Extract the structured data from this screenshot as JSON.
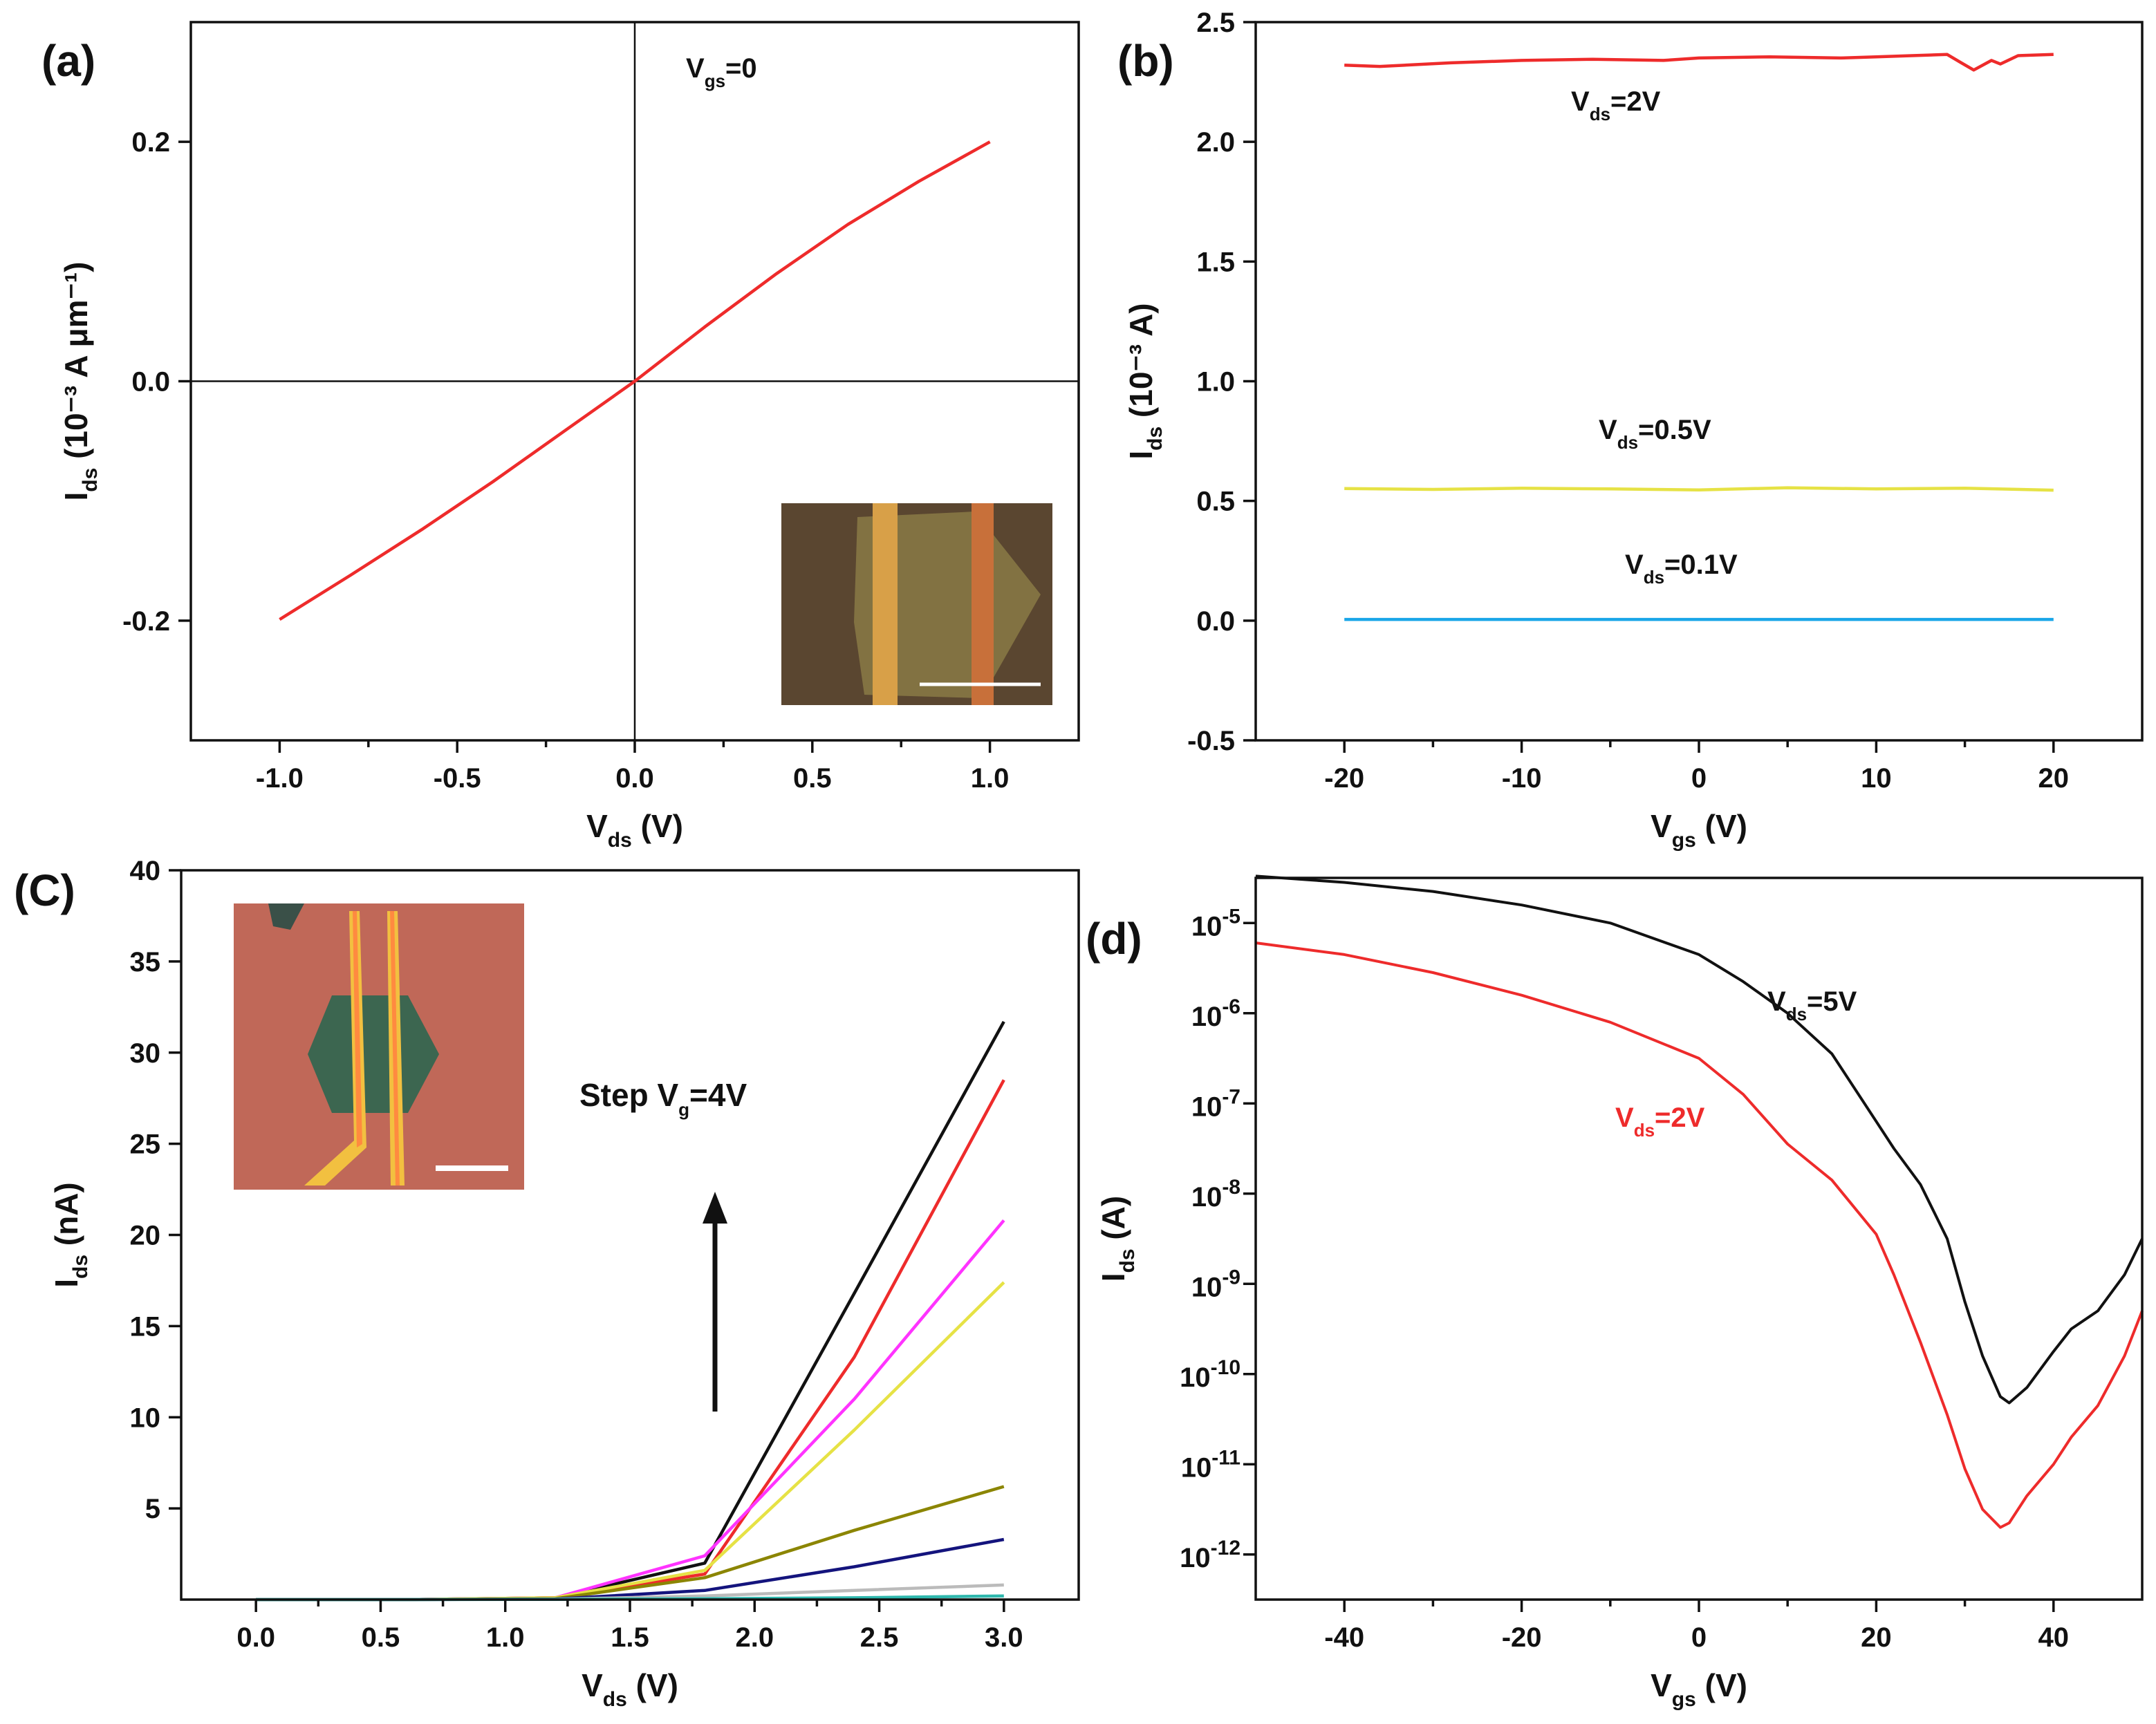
{
  "colors": {
    "red": "#ee2b2b",
    "yellow": "#e6e245",
    "blue": "#1aa6e8",
    "black": "#111111",
    "magenta": "#ff33ff",
    "olive": "#8b8500",
    "navy": "#14147d",
    "gray": "#bbbbbb",
    "teal": "#2fb8ae",
    "inset_a_bg": "#5a4630",
    "inset_c_bg": "#c06858"
  },
  "chart_data": [
    {
      "id": "a",
      "type": "line",
      "panel_label": "(a)",
      "xlabel": {
        "main": "V",
        "sub": "ds",
        "rest": " (V)"
      },
      "ylabel": {
        "main": "I",
        "sub": "ds",
        "rest": " (10⁻³ A μm⁻¹)"
      },
      "xlim": [
        -1.25,
        1.25
      ],
      "ylim": [
        -0.3,
        0.3
      ],
      "xticks": [
        -1.0,
        -0.5,
        0.0,
        0.5,
        1.0
      ],
      "xtick_labels": [
        "-1.0",
        "-0.5",
        "0.0",
        "0.5",
        "1.0"
      ],
      "yticks": [
        -0.2,
        0.0,
        0.2
      ],
      "ytick_labels": [
        "-0.2",
        "0.0",
        "0.2"
      ],
      "crosshair": true,
      "annotation": {
        "main": "V",
        "sub": "gs",
        "rest": "=0"
      },
      "inset": "optical micrograph of device with scale bar",
      "series": [
        {
          "name": "Vgs=0",
          "color": "red",
          "x": [
            -1.0,
            -0.8,
            -0.6,
            -0.4,
            -0.2,
            0.0,
            0.2,
            0.4,
            0.6,
            0.8,
            1.0
          ],
          "y": [
            -0.199,
            -0.162,
            -0.124,
            -0.084,
            -0.042,
            0.0,
            0.046,
            0.09,
            0.131,
            0.167,
            0.2
          ]
        }
      ]
    },
    {
      "id": "b",
      "type": "line",
      "panel_label": "(b)",
      "xlabel": {
        "main": "V",
        "sub": "gs",
        "rest": " (V)"
      },
      "ylabel": {
        "main": "I",
        "sub": "ds",
        "rest": " (10⁻³ A)"
      },
      "xlim": [
        -25,
        25
      ],
      "ylim": [
        -0.5,
        2.5
      ],
      "xticks": [
        -20,
        -10,
        0,
        10,
        20
      ],
      "xtick_labels": [
        "-20",
        "-10",
        "0",
        "10",
        "20"
      ],
      "yticks": [
        -0.5,
        0.0,
        0.5,
        1.0,
        1.5,
        2.0,
        2.5
      ],
      "ytick_labels": [
        "-0.5",
        "0.0",
        "0.5",
        "1.0",
        "1.5",
        "2.0",
        "2.5"
      ],
      "series": [
        {
          "name": "Vds=2V",
          "color": "red",
          "label": {
            "main": "V",
            "sub": "ds",
            "rest": "=2V"
          },
          "x": [
            -20,
            -18,
            -14,
            -10,
            -6,
            -2,
            0,
            4,
            8,
            10,
            12,
            14,
            14.8,
            15.5,
            16.5,
            17,
            18,
            20
          ],
          "y": [
            2.32,
            2.315,
            2.33,
            2.34,
            2.345,
            2.34,
            2.35,
            2.355,
            2.35,
            2.355,
            2.36,
            2.365,
            2.33,
            2.3,
            2.34,
            2.325,
            2.36,
            2.365
          ]
        },
        {
          "name": "Vds=0.5V",
          "color": "yellow",
          "label": {
            "main": "V",
            "sub": "ds",
            "rest": "=0.5V"
          },
          "x": [
            -20,
            -15,
            -10,
            -5,
            0,
            5,
            10,
            15,
            20
          ],
          "y": [
            0.552,
            0.548,
            0.553,
            0.55,
            0.546,
            0.555,
            0.55,
            0.553,
            0.545
          ]
        },
        {
          "name": "Vds=0.1V",
          "color": "blue",
          "label": {
            "main": "V",
            "sub": "ds",
            "rest": "=0.1V"
          },
          "x": [
            -20,
            20
          ],
          "y": [
            0.005,
            0.005
          ]
        }
      ]
    },
    {
      "id": "c",
      "type": "line",
      "panel_label": "(C)",
      "xlabel": {
        "main": "V",
        "sub": "ds",
        "rest": " (V)"
      },
      "ylabel": {
        "main": "I",
        "sub": "ds",
        "rest": " (nA)"
      },
      "xlim": [
        -0.3,
        3.3
      ],
      "ylim": [
        0,
        40
      ],
      "xticks": [
        0.0,
        0.5,
        1.0,
        1.5,
        2.0,
        2.5,
        3.0
      ],
      "xtick_labels": [
        "0.0",
        "0.5",
        "1.0",
        "1.5",
        "2.0",
        "2.5",
        "3.0"
      ],
      "yticks": [
        5,
        10,
        15,
        20,
        25,
        30,
        35,
        40
      ],
      "ytick_labels": [
        "5",
        "10",
        "15",
        "20",
        "25",
        "30",
        "35",
        "40"
      ],
      "annotation": {
        "main": "Step V",
        "sub": "g",
        "rest": "=4V"
      },
      "inset": "optical micrograph of device with scale bar",
      "series": [
        {
          "color": "black",
          "x": [
            0,
            0.6,
            1.2,
            1.8,
            2.4,
            3.0
          ],
          "y": [
            0,
            0,
            0.1,
            2.0,
            16.8,
            31.7
          ]
        },
        {
          "color": "red",
          "x": [
            0,
            0.6,
            1.2,
            1.8,
            2.4,
            3.0
          ],
          "y": [
            0,
            0,
            0.1,
            1.4,
            13.3,
            28.5
          ]
        },
        {
          "color": "magenta",
          "x": [
            0,
            0.6,
            1.2,
            1.8,
            2.4,
            3.0
          ],
          "y": [
            0,
            0,
            0.1,
            2.4,
            11.0,
            20.8
          ]
        },
        {
          "color": "yellow",
          "x": [
            0,
            0.6,
            1.2,
            1.8,
            2.4,
            3.0
          ],
          "y": [
            0,
            0,
            0.1,
            1.6,
            9.3,
            17.4
          ]
        },
        {
          "color": "olive",
          "x": [
            0,
            0.6,
            1.2,
            1.8,
            2.4,
            3.0
          ],
          "y": [
            0,
            0,
            0.05,
            1.2,
            3.8,
            6.2
          ]
        },
        {
          "color": "navy",
          "x": [
            0,
            0.6,
            1.2,
            1.8,
            2.4,
            3.0
          ],
          "y": [
            0,
            0,
            0.03,
            0.5,
            1.8,
            3.3
          ]
        },
        {
          "color": "gray",
          "x": [
            0,
            0.6,
            1.2,
            1.8,
            2.4,
            3.0
          ],
          "y": [
            0,
            0,
            0.02,
            0.2,
            0.5,
            0.8
          ]
        },
        {
          "color": "teal",
          "x": [
            0,
            0.6,
            1.2,
            1.8,
            2.4,
            3.0
          ],
          "y": [
            0,
            0,
            0.01,
            0.05,
            0.1,
            0.2
          ]
        }
      ]
    },
    {
      "id": "d",
      "type": "line",
      "panel_label": "(d)",
      "yscale": "log",
      "xlabel": {
        "main": "V",
        "sub": "gs",
        "rest": " (V)"
      },
      "ylabel": {
        "main": "I",
        "sub": "ds",
        "rest": " (A)"
      },
      "xlim": [
        -50,
        50
      ],
      "ylim_log10": [
        -12.5,
        -4.5
      ],
      "xticks": [
        -40,
        -20,
        0,
        20,
        40
      ],
      "xtick_labels": [
        "-40",
        "-20",
        "0",
        "20",
        "40"
      ],
      "yticks_log10": [
        -12,
        -11,
        -10,
        -9,
        -8,
        -7,
        -6,
        -5
      ],
      "ytick_labels": [
        {
          "base": "10",
          "exp": "-12"
        },
        {
          "base": "10",
          "exp": "-11"
        },
        {
          "base": "10",
          "exp": "-10"
        },
        {
          "base": "10",
          "exp": "-9"
        },
        {
          "base": "10",
          "exp": "-8"
        },
        {
          "base": "10",
          "exp": "-7"
        },
        {
          "base": "10",
          "exp": "-6"
        },
        {
          "base": "10",
          "exp": "-5"
        }
      ],
      "series": [
        {
          "name": "Vds=5V",
          "color": "black",
          "label": {
            "main": "V",
            "sub": "ds",
            "rest": "=5V"
          },
          "x": [
            -50,
            -40,
            -30,
            -20,
            -10,
            0,
            5,
            10,
            15,
            20,
            22,
            25,
            28,
            30,
            32,
            34,
            35,
            37,
            40,
            42,
            45,
            48,
            50
          ],
          "log10y": [
            -4.48,
            -4.55,
            -4.65,
            -4.8,
            -5.0,
            -5.35,
            -5.65,
            -6.0,
            -6.45,
            -7.2,
            -7.5,
            -7.9,
            -8.5,
            -9.2,
            -9.8,
            -10.25,
            -10.32,
            -10.15,
            -9.75,
            -9.5,
            -9.3,
            -8.9,
            -8.5
          ]
        },
        {
          "name": "Vds=2V",
          "color": "red",
          "label": {
            "main": "V",
            "sub": "ds",
            "rest": "=2V"
          },
          "x": [
            -50,
            -40,
            -30,
            -20,
            -10,
            0,
            5,
            10,
            15,
            20,
            22,
            25,
            28,
            30,
            32,
            34,
            35,
            37,
            40,
            42,
            45,
            48,
            50
          ],
          "log10y": [
            -5.22,
            -5.35,
            -5.55,
            -5.8,
            -6.1,
            -6.5,
            -6.9,
            -7.45,
            -7.85,
            -8.45,
            -8.9,
            -9.65,
            -10.45,
            -11.05,
            -11.5,
            -11.7,
            -11.65,
            -11.35,
            -11.0,
            -10.7,
            -10.35,
            -9.8,
            -9.3
          ]
        }
      ]
    }
  ]
}
